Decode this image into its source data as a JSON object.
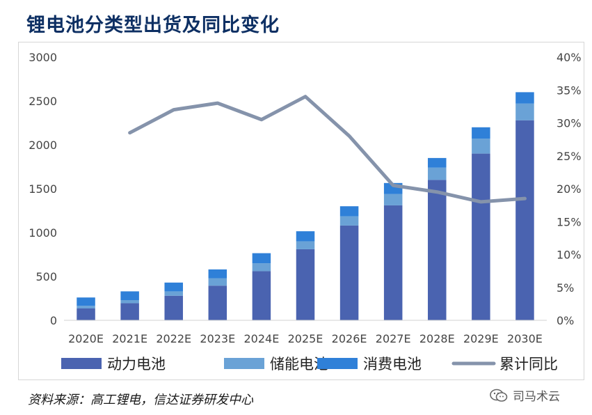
{
  "title": "锂电池分类型出货及同比变化",
  "source": "资料来源：高工锂电，信达证券研发中心",
  "watermark": {
    "icon": "wechat-icon",
    "text": "司马术云"
  },
  "chart_data": {
    "type": "bar",
    "stacked": true,
    "title": "锂电池分类型出货及同比变化",
    "categories": [
      "2020E",
      "2021E",
      "2022E",
      "2023E",
      "2024E",
      "2025E",
      "2026E",
      "2027E",
      "2028E",
      "2029E",
      "2030E"
    ],
    "series": [
      {
        "name": "动力电池",
        "kind": "bar",
        "axis": "left",
        "color": "#4a63b0",
        "values": [
          135,
          195,
          280,
          395,
          560,
          810,
          1080,
          1310,
          1600,
          1900,
          2280
        ]
      },
      {
        "name": "储能电池",
        "kind": "bar",
        "axis": "left",
        "color": "#6aa2d6",
        "values": [
          30,
          35,
          50,
          85,
          90,
          90,
          105,
          130,
          140,
          170,
          190
        ]
      },
      {
        "name": "消费电池",
        "kind": "bar",
        "axis": "left",
        "color": "#2f80d8",
        "values": [
          95,
          100,
          100,
          100,
          115,
          115,
          115,
          125,
          110,
          130,
          130
        ]
      },
      {
        "name": "累计同比",
        "kind": "line",
        "axis": "right",
        "color": "#8593ab",
        "values": [
          null,
          0.285,
          0.32,
          0.33,
          0.305,
          0.34,
          0.28,
          0.205,
          0.195,
          0.18,
          0.185
        ]
      }
    ],
    "y_left": {
      "min": 0,
      "max": 3000,
      "ticks": [
        "0",
        "500",
        "1000",
        "1500",
        "2000",
        "2500",
        "3000"
      ]
    },
    "y_right": {
      "min": 0,
      "max": 0.4,
      "ticks": [
        "0%",
        "5%",
        "10%",
        "15%",
        "20%",
        "25%",
        "30%",
        "35%",
        "40%"
      ]
    },
    "grid": false,
    "legend": "bottom"
  }
}
